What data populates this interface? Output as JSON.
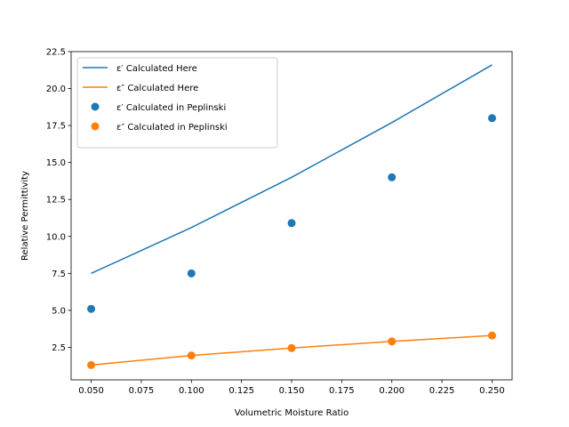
{
  "chart_data": {
    "type": "line",
    "xlabel": "Volumetric Moisture Ratio",
    "ylabel": "Relative Permittivity",
    "xlim": [
      0.04,
      0.26
    ],
    "ylim": [
      0.3,
      22.5
    ],
    "x_ticks": [
      "0.050",
      "0.075",
      "0.100",
      "0.125",
      "0.150",
      "0.175",
      "0.200",
      "0.225",
      "0.250"
    ],
    "y_ticks": [
      "2.5",
      "5.0",
      "7.5",
      "10.0",
      "12.5",
      "15.0",
      "17.5",
      "20.0",
      "22.5"
    ],
    "grid": false,
    "legend_position": "top-left",
    "series": [
      {
        "name": "ε′ Calculated Here",
        "kind": "line",
        "color": "#1f77b4",
        "x": [
          0.05,
          0.1,
          0.15,
          0.2,
          0.25
        ],
        "y": [
          7.5,
          10.6,
          14.0,
          17.7,
          21.6
        ]
      },
      {
        "name": "ε″ Calculated Here",
        "kind": "line",
        "color": "#ff7f0e",
        "x": [
          0.05,
          0.1,
          0.15,
          0.2,
          0.25
        ],
        "y": [
          1.3,
          1.95,
          2.45,
          2.9,
          3.3
        ]
      },
      {
        "name": "ε′ Calculated in Peplinski",
        "kind": "scatter",
        "color": "#1f77b4",
        "x": [
          0.05,
          0.1,
          0.15,
          0.2,
          0.25
        ],
        "y": [
          5.1,
          7.5,
          10.9,
          14.0,
          18.0
        ]
      },
      {
        "name": "ε″ Calculated in Peplinski",
        "kind": "scatter",
        "color": "#ff7f0e",
        "x": [
          0.05,
          0.1,
          0.15,
          0.2,
          0.25
        ],
        "y": [
          1.3,
          1.95,
          2.45,
          2.9,
          3.3
        ]
      }
    ]
  }
}
